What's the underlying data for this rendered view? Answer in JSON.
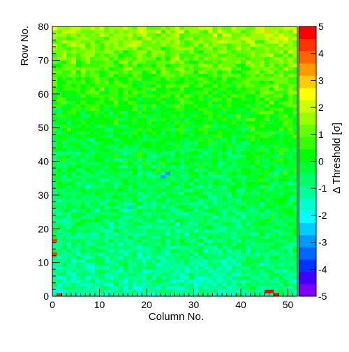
{
  "chart_data": {
    "type": "heatmap",
    "title": "",
    "xlabel": "Column No.",
    "ylabel": "Row No.",
    "colorbar_label": "Δ Threshold [σ]",
    "xlim": [
      0,
      52
    ],
    "ylim": [
      0,
      80
    ],
    "zlim": [
      -5,
      5
    ],
    "x_ticks": [
      0,
      10,
      20,
      30,
      40,
      50
    ],
    "y_ticks": [
      0,
      10,
      20,
      30,
      40,
      50,
      60,
      70,
      80
    ],
    "z_ticks": [
      -5,
      -4,
      -3,
      -2,
      -1,
      0,
      1,
      2,
      3,
      4,
      5
    ],
    "n_columns": 52,
    "n_rows": 80,
    "value_trend": {
      "bottom_rows_mean": -1.2,
      "middle_rows_mean": -0.3,
      "top_rows_mean": 1.6,
      "note": "cell-level values follow a gradient increasing with row number"
    },
    "notable_cells": [
      {
        "col": 0,
        "row": 16,
        "value": 4.5
      },
      {
        "col": 0,
        "row": 12,
        "value": 4.5
      },
      {
        "col": 1,
        "row": 0,
        "value": 4.5
      },
      {
        "col": 45,
        "row": 1,
        "value": 4.6
      },
      {
        "col": 46,
        "row": 1,
        "value": 4.6
      },
      {
        "col": 47,
        "row": 0,
        "value": 4.7
      },
      {
        "col": 23,
        "row": 35,
        "value": -3.0
      },
      {
        "col": 24,
        "row": 36,
        "value": -3.0
      },
      {
        "col": 16,
        "row": 26,
        "value": -2.3
      },
      {
        "col": 28,
        "row": 18,
        "value": -2.2
      },
      {
        "col": 7,
        "row": 32,
        "value": -2.2
      },
      {
        "col": 26,
        "row": 21,
        "value": -2.1
      }
    ],
    "palette": [
      "#7f00ff",
      "#3f00ff",
      "#0033ff",
      "#0066ff",
      "#0099ff",
      "#00ccff",
      "#00ffff",
      "#00ffcc",
      "#00ff99",
      "#00ff66",
      "#00ff33",
      "#00ff00",
      "#33ff00",
      "#66ff00",
      "#99ff00",
      "#ccff00",
      "#ffff00",
      "#ffcc00",
      "#ff9900",
      "#ff6600",
      "#ff3300",
      "#ff0000"
    ]
  }
}
